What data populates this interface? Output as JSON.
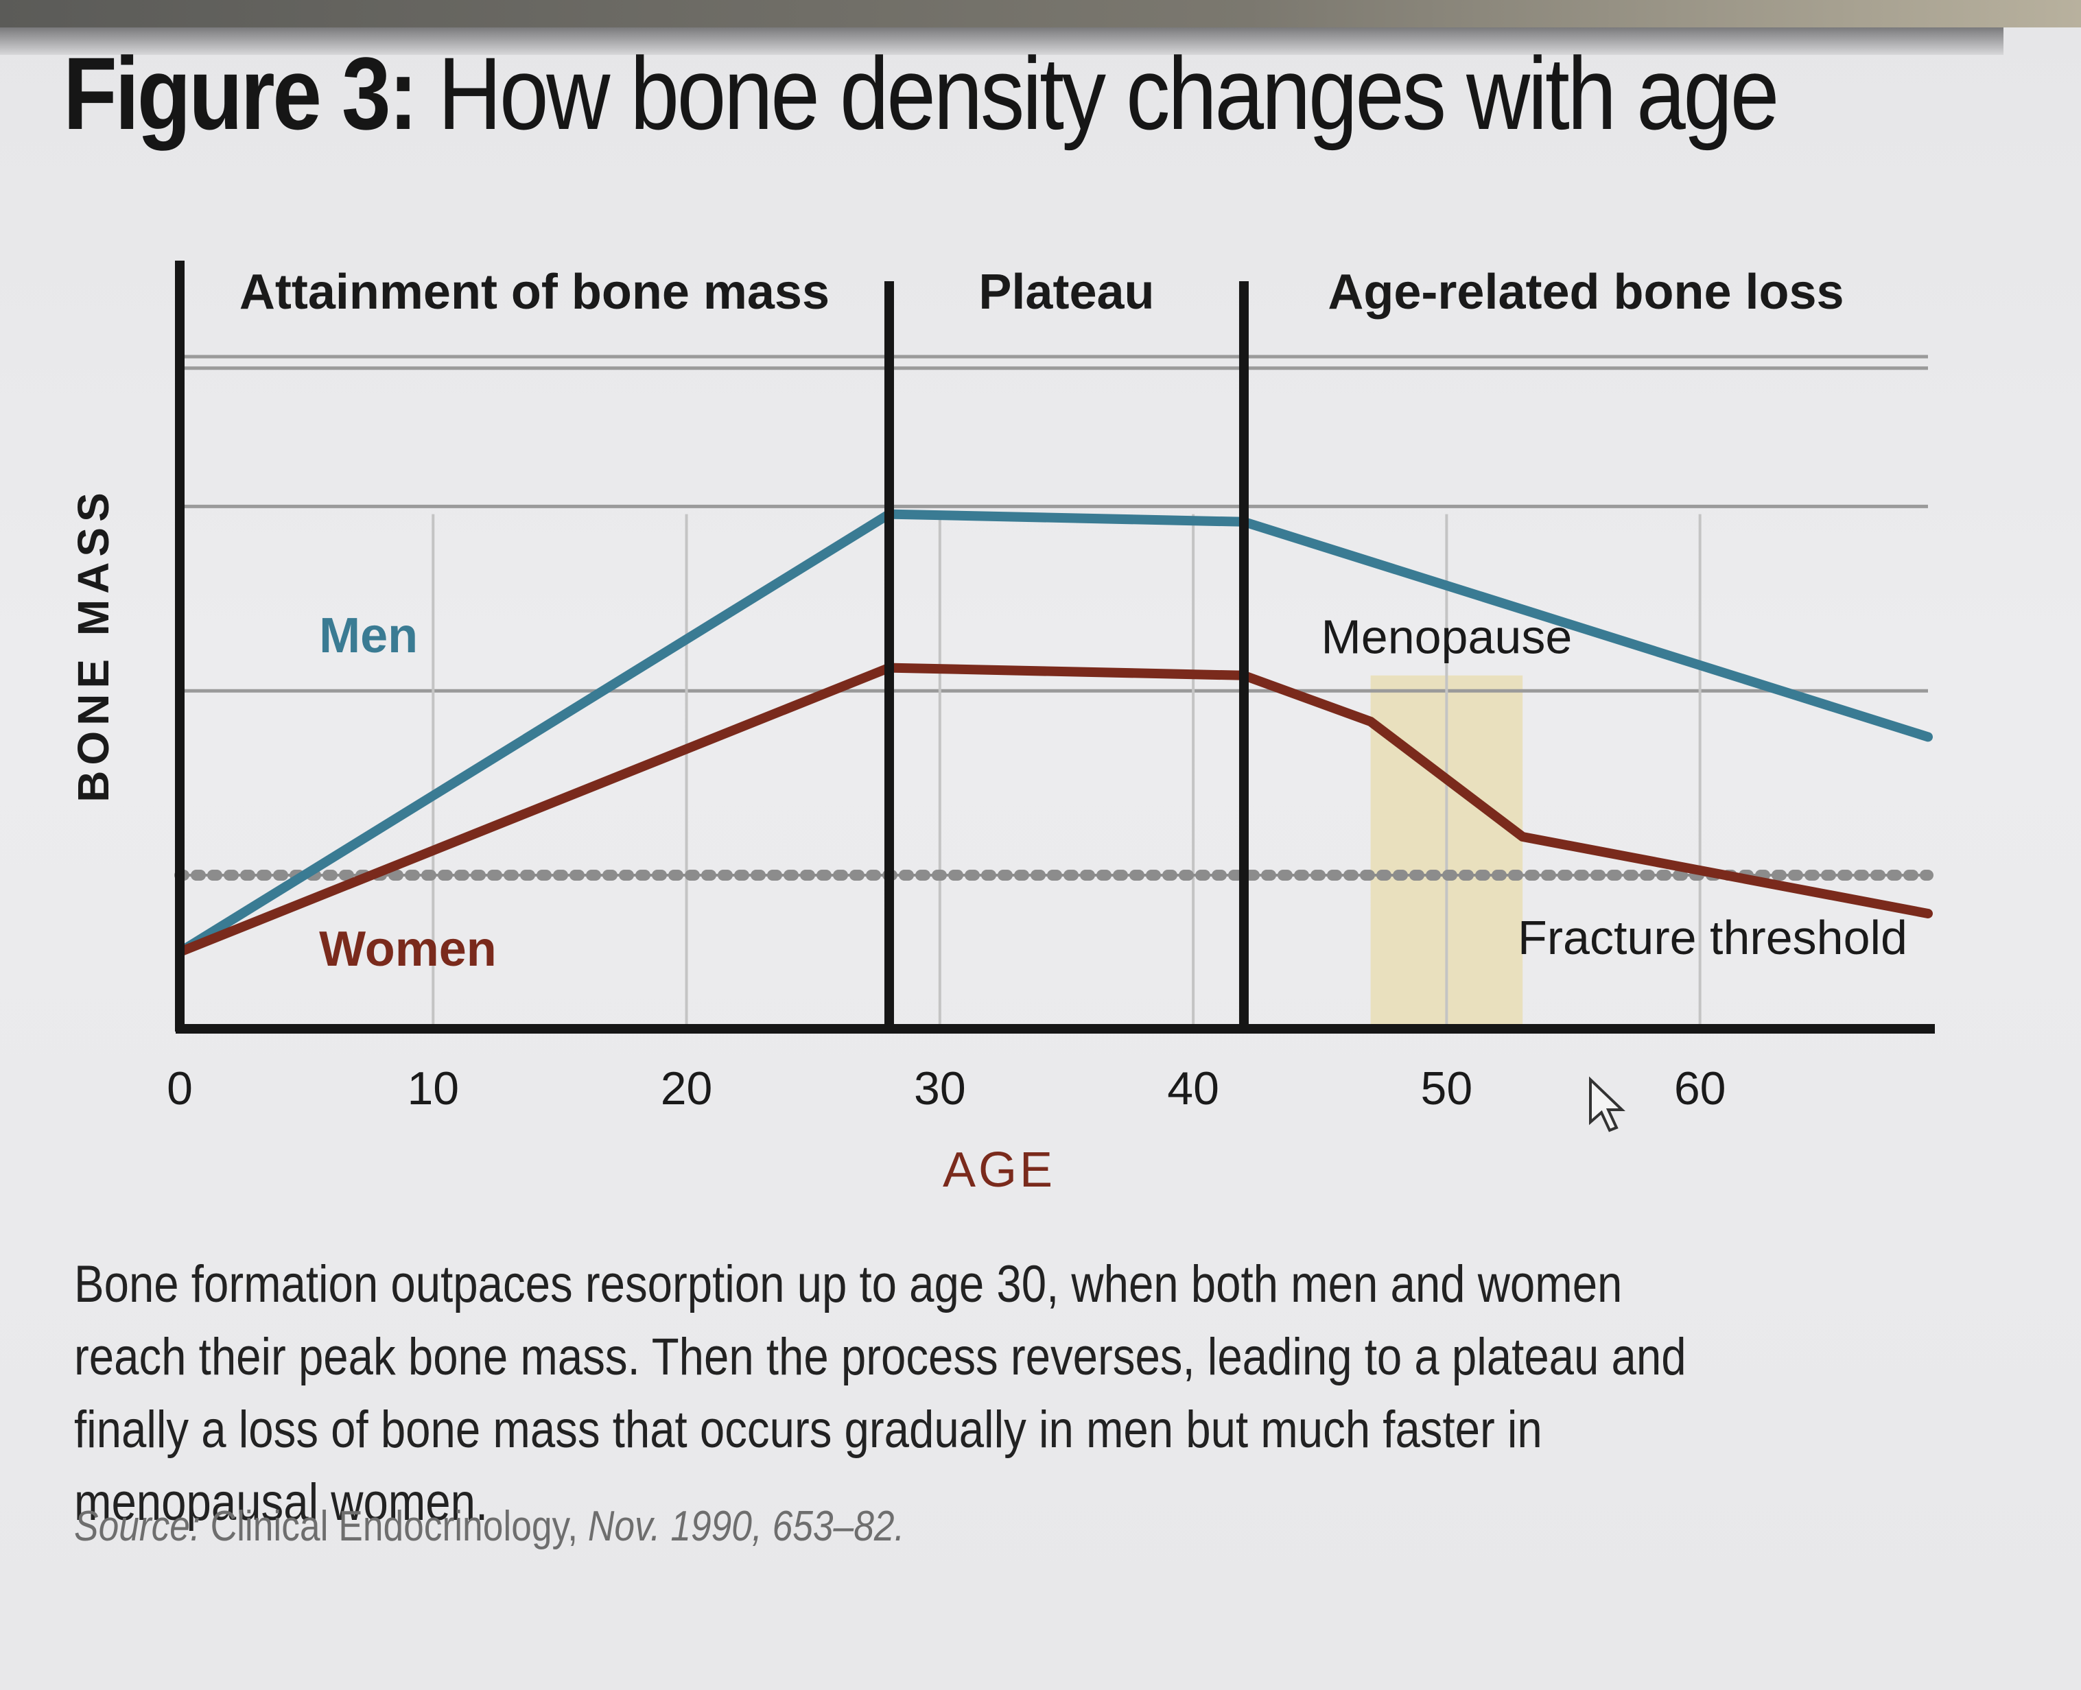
{
  "figure": {
    "label": "Figure 3:",
    "title": "How bone density changes with age"
  },
  "chart_data": {
    "type": "line",
    "xlabel": "AGE",
    "ylabel": "BONE MASS",
    "xlim": [
      0,
      69
    ],
    "ylim": [
      0,
      100
    ],
    "x_ticks": [
      0,
      10,
      20,
      30,
      40,
      50,
      60
    ],
    "grid": true,
    "y_gridlines": [
      44,
      68,
      86
    ],
    "phases": [
      {
        "label": "Attainment of bone mass",
        "start": 0,
        "end": 28
      },
      {
        "label": "Plateau",
        "start": 28,
        "end": 42
      },
      {
        "label": "Age-related bone loss",
        "start": 42,
        "end": 69
      }
    ],
    "phase_dividers": [
      28,
      42
    ],
    "menopause": {
      "label": "Menopause",
      "start": 47,
      "end": 53
    },
    "series": [
      {
        "name": "Men",
        "color": "#3a7b93",
        "x": [
          0,
          28,
          42,
          69
        ],
        "y": [
          10,
          67,
          66,
          38
        ]
      },
      {
        "name": "Women",
        "color": "#7a2a1c",
        "x": [
          0,
          28,
          42,
          47,
          53,
          69
        ],
        "y": [
          10,
          47,
          46,
          40,
          25,
          15
        ]
      }
    ],
    "threshold": {
      "name": "Fracture threshold",
      "color": "#8c8c8c",
      "y": 20
    },
    "colors": {
      "axis": "#161616",
      "grid": "#9a9a9a",
      "men": "#3a7b93",
      "women": "#7a2a1c",
      "menopause_band": "#e8dcae",
      "xlabel": "#7a2a1c"
    }
  },
  "caption": "Bone formation outpaces resorption up to age 30, when both men and women reach their peak bone mass. Then the process reverses, leading to a plateau and finally a loss of bone mass that occurs gradually in men but much faster in menopausal women.",
  "source": {
    "label": "Source:",
    "publication": "Clinical Endocrinology,",
    "date": "Nov. 1990, 653–82."
  }
}
